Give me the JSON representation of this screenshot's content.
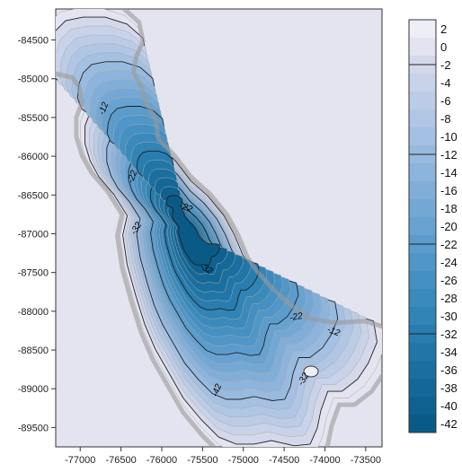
{
  "chart_data": {
    "type": "heatmap",
    "subtype": "filled-contour bathymetric map",
    "title": "",
    "xlabel": "",
    "ylabel": "",
    "x_ticks": [
      -77000,
      -76500,
      -76000,
      -75500,
      -75000,
      -74500,
      -74000,
      -73500
    ],
    "y_ticks": [
      -84500,
      -85000,
      -85500,
      -86000,
      -86500,
      -87000,
      -87500,
      -88000,
      -88500,
      -89000,
      -89500
    ],
    "xlim": [
      -77300,
      -73300
    ],
    "ylim": [
      -89750,
      -84100
    ],
    "background_color": "#e4e4f0",
    "land_level": 2,
    "colorbar": {
      "levels": [
        2,
        0,
        -2,
        -4,
        -6,
        -8,
        -10,
        -12,
        -14,
        -16,
        -18,
        -20,
        -22,
        -24,
        -26,
        -28,
        -30,
        -32,
        -34,
        -36,
        -38,
        -40,
        -42
      ],
      "colors": [
        "#eeeef6",
        "#e4e4f0",
        "#d4d8ea",
        "#c8d2e8",
        "#bcccE6",
        "#b0c6e4",
        "#a4c0e2",
        "#98badf",
        "#8cb4dc",
        "#80aed8",
        "#74a8d4",
        "#68a2d0",
        "#5c9ccc",
        "#5096c8",
        "#4490c2",
        "#3a8abc",
        "#3084b6",
        "#287db0",
        "#2176a8",
        "#1a6fa0",
        "#146898",
        "#0f6190",
        "#0a5a88"
      ]
    },
    "contour_labels": [
      "-12",
      "-22",
      "-22",
      "-32",
      "-32",
      "-22",
      "-12",
      "-32",
      "-42"
    ]
  }
}
